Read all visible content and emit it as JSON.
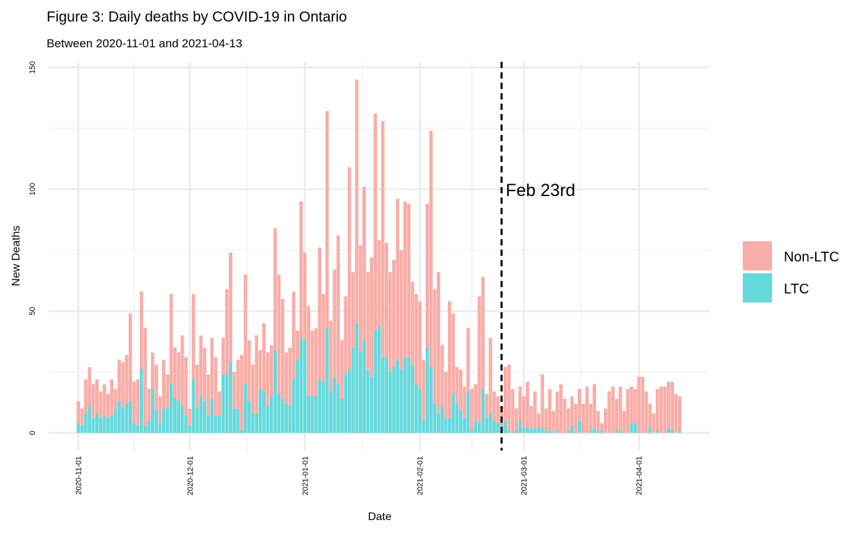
{
  "chart_data": {
    "type": "stacked-bar",
    "title": "Figure 3: Daily deaths by COVID-19 in Ontario",
    "subtitle": "Between 2020-11-01 and 2021-04-13",
    "x_label": "Date",
    "y_label": "New Deaths",
    "x": [
      "2020-11-01",
      "2020-11-02",
      "2020-11-03",
      "2020-11-04",
      "2020-11-05",
      "2020-11-06",
      "2020-11-07",
      "2020-11-08",
      "2020-11-09",
      "2020-11-10",
      "2020-11-11",
      "2020-11-12",
      "2020-11-13",
      "2020-11-14",
      "2020-11-15",
      "2020-11-16",
      "2020-11-17",
      "2020-11-18",
      "2020-11-19",
      "2020-11-20",
      "2020-11-21",
      "2020-11-22",
      "2020-11-23",
      "2020-11-24",
      "2020-11-25",
      "2020-11-26",
      "2020-11-27",
      "2020-11-28",
      "2020-11-29",
      "2020-11-30",
      "2020-12-01",
      "2020-12-02",
      "2020-12-03",
      "2020-12-04",
      "2020-12-05",
      "2020-12-06",
      "2020-12-07",
      "2020-12-08",
      "2020-12-09",
      "2020-12-10",
      "2020-12-11",
      "2020-12-12",
      "2020-12-13",
      "2020-12-14",
      "2020-12-15",
      "2020-12-16",
      "2020-12-17",
      "2020-12-18",
      "2020-12-19",
      "2020-12-20",
      "2020-12-21",
      "2020-12-22",
      "2020-12-23",
      "2020-12-24",
      "2020-12-25",
      "2020-12-26",
      "2020-12-27",
      "2020-12-28",
      "2020-12-29",
      "2020-12-30",
      "2020-12-31",
      "2021-01-01",
      "2021-01-02",
      "2021-01-03",
      "2021-01-04",
      "2021-01-05",
      "2021-01-06",
      "2021-01-07",
      "2021-01-08",
      "2021-01-09",
      "2021-01-10",
      "2021-01-11",
      "2021-01-12",
      "2021-01-13",
      "2021-01-14",
      "2021-01-15",
      "2021-01-16",
      "2021-01-17",
      "2021-01-18",
      "2021-01-19",
      "2021-01-20",
      "2021-01-21",
      "2021-01-22",
      "2021-01-23",
      "2021-01-24",
      "2021-01-25",
      "2021-01-26",
      "2021-01-27",
      "2021-01-28",
      "2021-01-29",
      "2021-01-30",
      "2021-01-31",
      "2021-02-01",
      "2021-02-02",
      "2021-02-03",
      "2021-02-04",
      "2021-02-05",
      "2021-02-06",
      "2021-02-07",
      "2021-02-08",
      "2021-02-09",
      "2021-02-10",
      "2021-02-11",
      "2021-02-12",
      "2021-02-13",
      "2021-02-14",
      "2021-02-15",
      "2021-02-16",
      "2021-02-17",
      "2021-02-18",
      "2021-02-19",
      "2021-02-20",
      "2021-02-21",
      "2021-02-22",
      "2021-02-23",
      "2021-02-24",
      "2021-02-25",
      "2021-02-26",
      "2021-02-27",
      "2021-02-28",
      "2021-03-01",
      "2021-03-02",
      "2021-03-03",
      "2021-03-04",
      "2021-03-05",
      "2021-03-06",
      "2021-03-07",
      "2021-03-08",
      "2021-03-09",
      "2021-03-10",
      "2021-03-11",
      "2021-03-12",
      "2021-03-13",
      "2021-03-14",
      "2021-03-15",
      "2021-03-16",
      "2021-03-17",
      "2021-03-18",
      "2021-03-19",
      "2021-03-20",
      "2021-03-21",
      "2021-03-22",
      "2021-03-23",
      "2021-03-24",
      "2021-03-25",
      "2021-03-26",
      "2021-03-27",
      "2021-03-28",
      "2021-03-29",
      "2021-03-30",
      "2021-03-31",
      "2021-04-01",
      "2021-04-02",
      "2021-04-03",
      "2021-04-04",
      "2021-04-05",
      "2021-04-06",
      "2021-04-07",
      "2021-04-08",
      "2021-04-09",
      "2021-04-10",
      "2021-04-11",
      "2021-04-12"
    ],
    "series": [
      {
        "name": "Non-LTC",
        "color": "#F9ADA8",
        "values": [
          9,
          7,
          14,
          16,
          14,
          14,
          11,
          13,
          10,
          15,
          8,
          17,
          19,
          20,
          36,
          17,
          19,
          32,
          40,
          13,
          15,
          19,
          11,
          20,
          14,
          37,
          21,
          20,
          29,
          24,
          7,
          35,
          18,
          25,
          22,
          17,
          25,
          24,
          10,
          15,
          35,
          45,
          15,
          20,
          31,
          45,
          25,
          20,
          32,
          16,
          28,
          22,
          21,
          50,
          49,
          41,
          21,
          24,
          36,
          12,
          56,
          36,
          37,
          27,
          28,
          54,
          36,
          89,
          29,
          44,
          61,
          24,
          32,
          83,
          31,
          100,
          44,
          63,
          40,
          49,
          89,
          35,
          97,
          47,
          41,
          44,
          66,
          49,
          64,
          63,
          34,
          37,
          36,
          25,
          59,
          97,
          47,
          58,
          25,
          19,
          48,
          33,
          15,
          17,
          13,
          26,
          17,
          15,
          52,
          46,
          10,
          31,
          12,
          11,
          8,
          22,
          27,
          18,
          9,
          14,
          13,
          19,
          9,
          15,
          6,
          22,
          9,
          17,
          9,
          16,
          20,
          14,
          9,
          12,
          12,
          13,
          12,
          19,
          11,
          18,
          8,
          3,
          10,
          17,
          19,
          13,
          18,
          9,
          18,
          15,
          14,
          23,
          23,
          17,
          10,
          8,
          17,
          19,
          19,
          19,
          20,
          16,
          14
        ]
      },
      {
        "name": "LTC",
        "color": "#66D9DC",
        "values": [
          4,
          3,
          8,
          11,
          6,
          8,
          6,
          7,
          6,
          7,
          10,
          13,
          10,
          12,
          13,
          4,
          3,
          26,
          3,
          5,
          18,
          9,
          4,
          10,
          10,
          20,
          14,
          13,
          11,
          7,
          3,
          22,
          10,
          15,
          13,
          7,
          14,
          7,
          7,
          24,
          24,
          29,
          10,
          10,
          1,
          20,
          13,
          8,
          8,
          18,
          17,
          11,
          15,
          34,
          16,
          14,
          12,
          11,
          22,
          30,
          39,
          38,
          15,
          15,
          15,
          22,
          21,
          43,
          17,
          23,
          20,
          14,
          24,
          26,
          35,
          45,
          33,
          38,
          26,
          23,
          42,
          44,
          31,
          31,
          25,
          27,
          30,
          26,
          31,
          31,
          28,
          20,
          18,
          5,
          35,
          27,
          12,
          8,
          11,
          6,
          6,
          16,
          12,
          9,
          6,
          17,
          1,
          5,
          4,
          18,
          6,
          8,
          5,
          4,
          3,
          5,
          1,
          0,
          1,
          5,
          2,
          2,
          2,
          2,
          2,
          2,
          1,
          1,
          0,
          1,
          0,
          0,
          1,
          3,
          0,
          5,
          0,
          0,
          1,
          2,
          1,
          1,
          0,
          0,
          0,
          1,
          1,
          0,
          0,
          4,
          4,
          0,
          0,
          0,
          2,
          0,
          1,
          0,
          0,
          2,
          1,
          0,
          1
        ]
      }
    ],
    "xlim": [
      "2020-10-24",
      "2021-04-20"
    ],
    "xticks": [
      "2020-11-01",
      "2020-12-01",
      "2021-01-01",
      "2021-02-01",
      "2021-03-01",
      "2021-04-01"
    ],
    "ylim": [
      -7.25,
      152.25
    ],
    "yticks": [
      0,
      50,
      100,
      150
    ],
    "grid": true,
    "legend": "right",
    "annotation": {
      "x": "2021-02-23",
      "label": "Feb 23rd"
    }
  }
}
